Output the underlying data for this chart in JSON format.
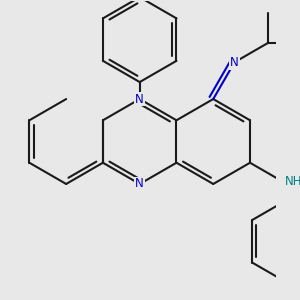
{
  "bg_color": "#e8e8e8",
  "bond_color": "#1a1a1a",
  "N_color": "#0000cc",
  "NH_color": "#008080",
  "H_color": "#008080",
  "line_width": 1.5,
  "fig_size": [
    3.0,
    3.0
  ],
  "dpi": 100,
  "xlim": [
    -3.2,
    3.2
  ],
  "ylim": [
    -3.5,
    3.5
  ]
}
